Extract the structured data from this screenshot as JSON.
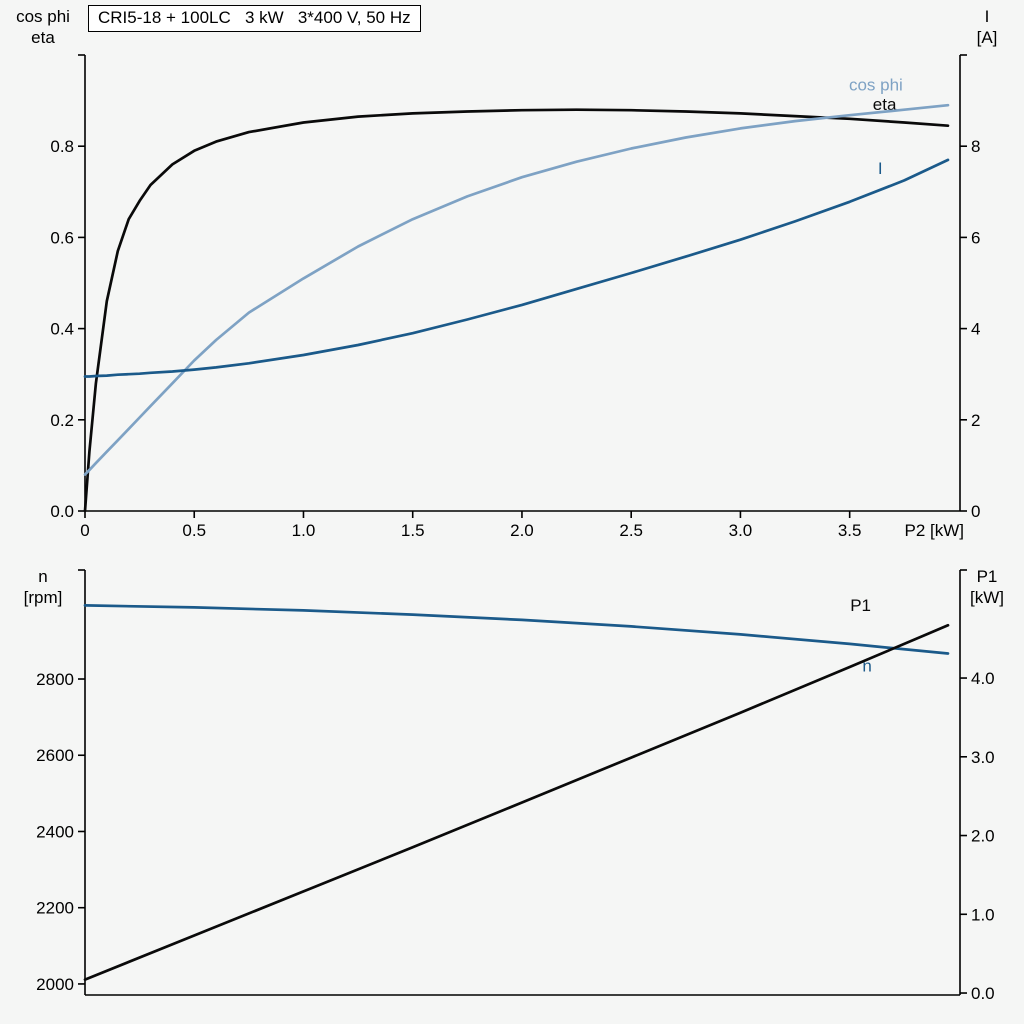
{
  "colors": {
    "background": "#f5f6f5",
    "black": "#0a0a0a",
    "dark_blue": "#1b5a8a",
    "light_blue": "#7ea2c4",
    "axis": "#000000"
  },
  "chart_data": [
    {
      "type": "line",
      "title": "CRI5-18 + 100LC   3 kW   3*400 V, 50 Hz",
      "x_axis": {
        "label": "P2 [kW]",
        "min": 0,
        "max": 4.005,
        "ticks": [
          0,
          0.5,
          1.0,
          1.5,
          2.0,
          2.5,
          3.0,
          3.5
        ],
        "tick_labels": [
          "0",
          "0.5",
          "1.0",
          "1.5",
          "2.0",
          "2.5",
          "3.0",
          "3.5"
        ]
      },
      "y_left": {
        "label_lines": [
          "cos phi",
          "eta"
        ],
        "min": 0,
        "max": 1.0,
        "ticks": [
          0.0,
          0.2,
          0.4,
          0.6,
          0.8
        ],
        "tick_labels": [
          "0.0",
          "0.2",
          "0.4",
          "0.6",
          "0.8"
        ]
      },
      "y_right": {
        "label_lines": [
          "I",
          "[A]"
        ],
        "min": 0,
        "max": 10,
        "ticks": [
          0,
          2,
          4,
          6,
          8
        ],
        "tick_labels": [
          "0",
          "2",
          "4",
          "6",
          "8"
        ]
      },
      "x": [
        0,
        0.02,
        0.05,
        0.1,
        0.15,
        0.2,
        0.25,
        0.3,
        0.4,
        0.5,
        0.6,
        0.75,
        1.0,
        1.25,
        1.5,
        1.75,
        2.0,
        2.25,
        2.5,
        2.75,
        3.0,
        3.25,
        3.5,
        3.75,
        3.95
      ],
      "series": [
        {
          "name": "eta",
          "label": "eta",
          "axis": "left",
          "color_key": "black",
          "label_pos": [
            3.66,
            0.893
          ],
          "values": [
            0,
            0.13,
            0.28,
            0.46,
            0.57,
            0.64,
            0.68,
            0.715,
            0.76,
            0.79,
            0.81,
            0.831,
            0.852,
            0.865,
            0.872,
            0.876,
            0.879,
            0.88,
            0.879,
            0.876,
            0.872,
            0.866,
            0.86,
            0.852,
            0.845
          ]
        },
        {
          "name": "cos_phi",
          "label": "cos phi",
          "axis": "left",
          "color_key": "light_blue",
          "label_pos": [
            3.62,
            0.935
          ],
          "values": [
            0.08,
            0.09,
            0.105,
            0.13,
            0.155,
            0.18,
            0.205,
            0.23,
            0.28,
            0.33,
            0.375,
            0.435,
            0.51,
            0.58,
            0.64,
            0.69,
            0.732,
            0.766,
            0.795,
            0.819,
            0.839,
            0.855,
            0.868,
            0.88,
            0.89
          ]
        },
        {
          "name": "I",
          "label": "I",
          "axis": "right",
          "color_key": "dark_blue",
          "label_pos": [
            3.64,
            7.52
          ],
          "values": [
            2.95,
            2.95,
            2.96,
            2.97,
            2.99,
            3.0,
            3.01,
            3.03,
            3.06,
            3.1,
            3.15,
            3.24,
            3.42,
            3.64,
            3.9,
            4.2,
            4.52,
            4.87,
            5.22,
            5.58,
            5.95,
            6.35,
            6.78,
            7.25,
            7.7
          ]
        }
      ]
    },
    {
      "type": "line",
      "title": "",
      "x_axis": {
        "label": "",
        "min": 0,
        "max": 4.005,
        "ticks": [],
        "tick_labels": []
      },
      "y_left": {
        "label_lines": [
          "n",
          "[rpm]"
        ],
        "min": 1971,
        "max": 3086,
        "ticks": [
          2000,
          2200,
          2400,
          2600,
          2800
        ],
        "tick_labels": [
          "2000",
          "2200",
          "2400",
          "2600",
          "2800"
        ]
      },
      "y_right": {
        "label_lines": [
          "P1",
          "[kW]"
        ],
        "min": -0.025,
        "max": 5.372,
        "ticks": [
          0,
          1,
          2,
          3,
          4
        ],
        "tick_labels": [
          "0.0",
          "1.0",
          "2.0",
          "3.0",
          "4.0"
        ]
      },
      "x": [
        0,
        0.5,
        1.0,
        1.5,
        2.0,
        2.5,
        3.0,
        3.5,
        3.95
      ],
      "series": [
        {
          "name": "n",
          "label": "n",
          "axis": "left",
          "color_key": "dark_blue",
          "label_pos": [
            3.58,
            2836
          ],
          "values": [
            2993,
            2988,
            2980,
            2969,
            2955,
            2938,
            2917,
            2892,
            2867
          ]
        },
        {
          "name": "P1",
          "label": "P1",
          "axis": "right",
          "color_key": "black",
          "label_pos": [
            3.55,
            4.93
          ],
          "values": [
            0.17,
            0.73,
            1.29,
            1.85,
            2.42,
            2.99,
            3.56,
            4.14,
            4.67
          ]
        }
      ]
    }
  ]
}
